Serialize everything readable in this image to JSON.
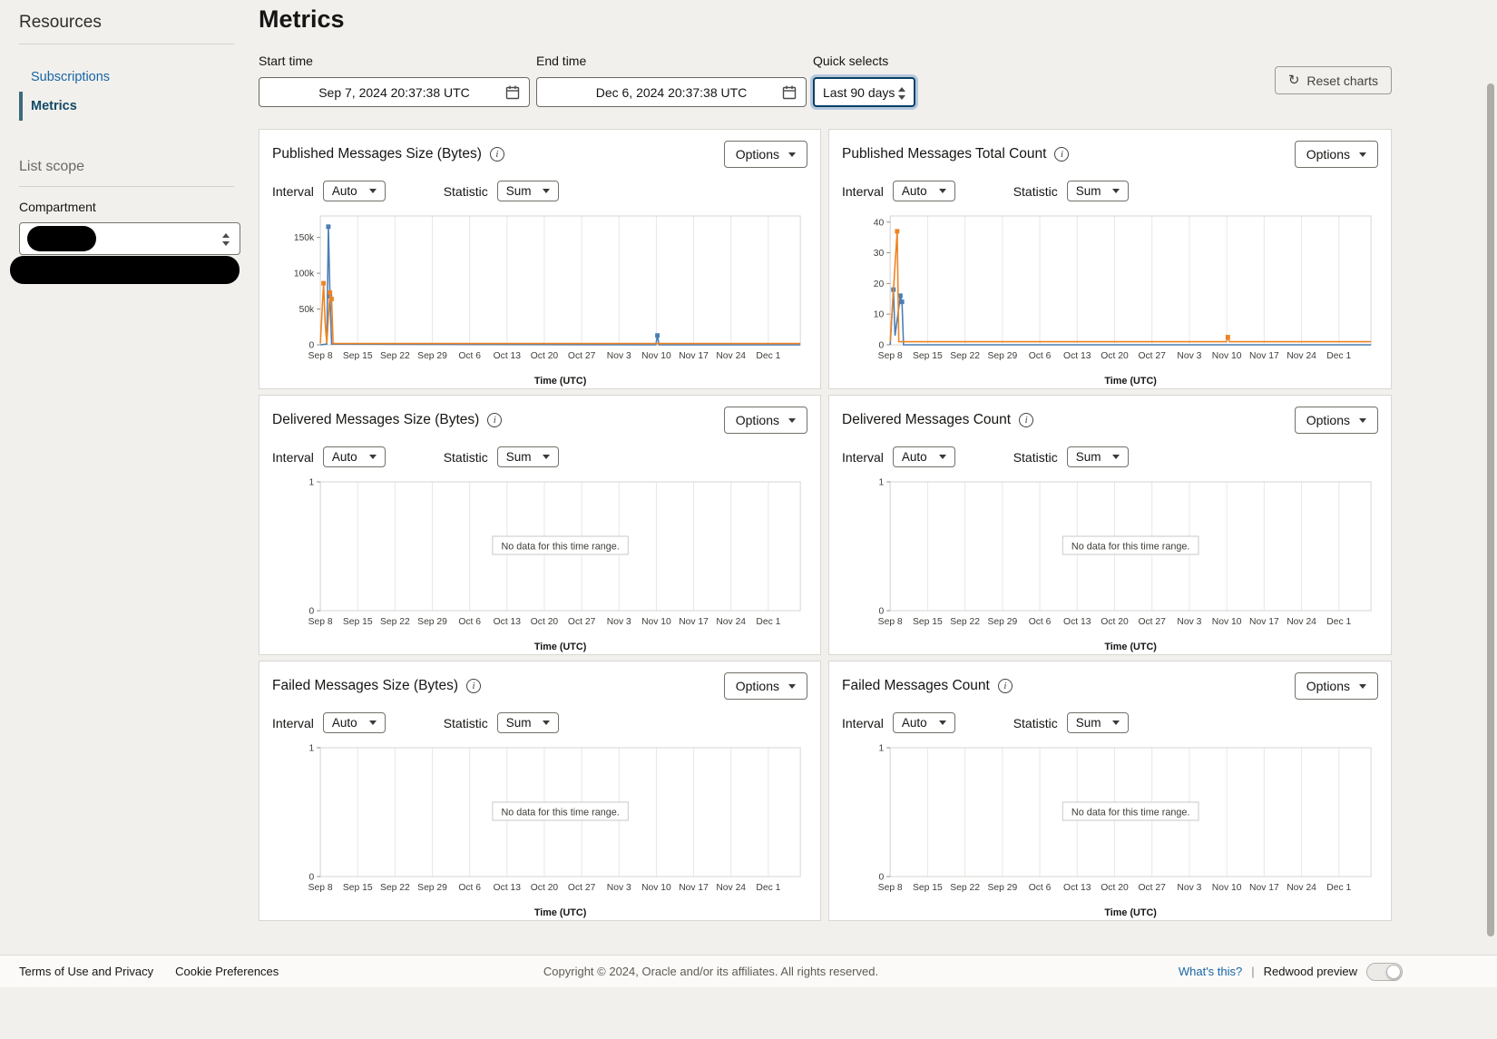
{
  "sidebar": {
    "resources_title": "Resources",
    "items": [
      {
        "label": "Subscriptions"
      },
      {
        "label": "Metrics"
      }
    ],
    "list_scope_title": "List scope",
    "compartment_label": "Compartment"
  },
  "header": {
    "title": "Metrics"
  },
  "controls": {
    "start_time_label": "Start time",
    "start_time_value": "Sep 7, 2024 20:37:38 UTC",
    "end_time_label": "End time",
    "end_time_value": "Dec 6, 2024 20:37:38 UTC",
    "quick_selects_label": "Quick selects",
    "quick_selects_value": "Last 90 days",
    "reset_charts_label": "Reset charts"
  },
  "chart_controls": {
    "interval_label": "Interval",
    "interval_value": "Auto",
    "statistic_label": "Statistic",
    "statistic_value": "Sum",
    "options_label": "Options"
  },
  "icons": {
    "info_glyph": "i",
    "refresh_glyph": "↻"
  },
  "colors": {
    "series_blue": "#4a7eb5",
    "series_orange": "#ee8323",
    "link_teal": "#1766a6"
  },
  "chart_data": [
    {
      "title": "Published Messages Size (Bytes)",
      "type": "line",
      "time_label": "Time (UTC)",
      "xdomain": [
        0,
        90
      ],
      "xticks": [
        0,
        7,
        14,
        21,
        28,
        35,
        42,
        49,
        56,
        63,
        70,
        77,
        84
      ],
      "xlabels": [
        "Sep 8",
        "Sep 15",
        "Sep 22",
        "Sep 29",
        "Oct 6",
        "Oct 13",
        "Oct 20",
        "Oct 27",
        "Nov 3",
        "Nov 10",
        "Nov 17",
        "Nov 24",
        "Dec 1"
      ],
      "ylim": [
        0,
        180000
      ],
      "yticks": [
        {
          "v": 0,
          "label": "0"
        },
        {
          "v": 50000,
          "label": "50k"
        },
        {
          "v": 100000,
          "label": "100k"
        },
        {
          "v": 150000,
          "label": "150k"
        }
      ],
      "no_data": false,
      "series": [
        {
          "name": "published-size-blue",
          "color": "#4a7eb5",
          "points": [
            [
              0,
              0
            ],
            [
              1.2,
              1000
            ],
            [
              1.5,
              165000
            ],
            [
              1.8,
              68000
            ],
            [
              2.1,
              1000
            ],
            [
              62.9,
              0
            ],
            [
              63.2,
              13000
            ],
            [
              63.5,
              0
            ],
            [
              90,
              0
            ]
          ],
          "markers": [
            [
              1.5,
              165000
            ],
            [
              1.8,
              68000
            ],
            [
              63.2,
              13000
            ]
          ]
        },
        {
          "name": "published-size-orange",
          "color": "#ee8323",
          "points": [
            [
              0,
              1800
            ],
            [
              0.6,
              86000
            ],
            [
              0.9,
              30000
            ],
            [
              1.2,
              1800
            ],
            [
              1.8,
              73000
            ],
            [
              2.1,
              64000
            ],
            [
              2.4,
              1800
            ],
            [
              90,
              1800
            ]
          ],
          "markers": [
            [
              0.6,
              86000
            ],
            [
              1.8,
              73000
            ],
            [
              2.1,
              64000
            ]
          ]
        }
      ]
    },
    {
      "title": "Published Messages Total Count",
      "type": "line",
      "time_label": "Time (UTC)",
      "xdomain": [
        0,
        90
      ],
      "xticks": [
        0,
        7,
        14,
        21,
        28,
        35,
        42,
        49,
        56,
        63,
        70,
        77,
        84
      ],
      "xlabels": [
        "Sep 8",
        "Sep 15",
        "Sep 22",
        "Sep 29",
        "Oct 6",
        "Oct 13",
        "Oct 20",
        "Oct 27",
        "Nov 3",
        "Nov 10",
        "Nov 17",
        "Nov 24",
        "Dec 1"
      ],
      "ylim": [
        0,
        42
      ],
      "yticks": [
        {
          "v": 0,
          "label": "0"
        },
        {
          "v": 10,
          "label": "10"
        },
        {
          "v": 20,
          "label": "20"
        },
        {
          "v": 30,
          "label": "30"
        },
        {
          "v": 40,
          "label": "40"
        }
      ],
      "no_data": false,
      "series": [
        {
          "name": "published-count-blue",
          "color": "#4a7eb5",
          "points": [
            [
              0,
              0
            ],
            [
              0.6,
              18
            ],
            [
              0.9,
              3
            ],
            [
              1.9,
              16
            ],
            [
              2.2,
              14
            ],
            [
              2.5,
              0
            ],
            [
              90,
              0
            ]
          ],
          "markers": [
            [
              0.6,
              18
            ],
            [
              1.9,
              16
            ],
            [
              2.2,
              14
            ]
          ]
        },
        {
          "name": "published-count-orange",
          "color": "#ee8323",
          "points": [
            [
              0,
              1
            ],
            [
              1.3,
              37
            ],
            [
              1.6,
              1
            ],
            [
              62.9,
              1
            ],
            [
              63.2,
              2.5
            ],
            [
              63.5,
              1
            ],
            [
              90,
              1
            ]
          ],
          "markers": [
            [
              1.3,
              37
            ],
            [
              63.2,
              2.5
            ]
          ]
        }
      ]
    },
    {
      "title": "Delivered Messages Size (Bytes)",
      "type": "line",
      "time_label": "Time (UTC)",
      "xdomain": [
        0,
        90
      ],
      "xticks": [
        0,
        7,
        14,
        21,
        28,
        35,
        42,
        49,
        56,
        63,
        70,
        77,
        84
      ],
      "xlabels": [
        "Sep 8",
        "Sep 15",
        "Sep 22",
        "Sep 29",
        "Oct 6",
        "Oct 13",
        "Oct 20",
        "Oct 27",
        "Nov 3",
        "Nov 10",
        "Nov 17",
        "Nov 24",
        "Dec 1"
      ],
      "ylim": [
        0,
        1
      ],
      "yticks": [
        {
          "v": 0,
          "label": "0"
        },
        {
          "v": 1,
          "label": "1"
        }
      ],
      "no_data": true,
      "no_data_text": "No data for this time range.",
      "series": []
    },
    {
      "title": "Delivered Messages Count",
      "type": "line",
      "time_label": "Time (UTC)",
      "xdomain": [
        0,
        90
      ],
      "xticks": [
        0,
        7,
        14,
        21,
        28,
        35,
        42,
        49,
        56,
        63,
        70,
        77,
        84
      ],
      "xlabels": [
        "Sep 8",
        "Sep 15",
        "Sep 22",
        "Sep 29",
        "Oct 6",
        "Oct 13",
        "Oct 20",
        "Oct 27",
        "Nov 3",
        "Nov 10",
        "Nov 17",
        "Nov 24",
        "Dec 1"
      ],
      "ylim": [
        0,
        1
      ],
      "yticks": [
        {
          "v": 0,
          "label": "0"
        },
        {
          "v": 1,
          "label": "1"
        }
      ],
      "no_data": true,
      "no_data_text": "No data for this time range.",
      "series": []
    },
    {
      "title": "Failed Messages Size (Bytes)",
      "type": "line",
      "time_label": "Time (UTC)",
      "xdomain": [
        0,
        90
      ],
      "xticks": [
        0,
        7,
        14,
        21,
        28,
        35,
        42,
        49,
        56,
        63,
        70,
        77,
        84
      ],
      "xlabels": [
        "Sep 8",
        "Sep 15",
        "Sep 22",
        "Sep 29",
        "Oct 6",
        "Oct 13",
        "Oct 20",
        "Oct 27",
        "Nov 3",
        "Nov 10",
        "Nov 17",
        "Nov 24",
        "Dec 1"
      ],
      "ylim": [
        0,
        1
      ],
      "yticks": [
        {
          "v": 0,
          "label": "0"
        },
        {
          "v": 1,
          "label": "1"
        }
      ],
      "no_data": true,
      "no_data_text": "No data for this time range.",
      "series": []
    },
    {
      "title": "Failed Messages Count",
      "type": "line",
      "time_label": "Time (UTC)",
      "xdomain": [
        0,
        90
      ],
      "xticks": [
        0,
        7,
        14,
        21,
        28,
        35,
        42,
        49,
        56,
        63,
        70,
        77,
        84
      ],
      "xlabels": [
        "Sep 8",
        "Sep 15",
        "Sep 22",
        "Sep 29",
        "Oct 6",
        "Oct 13",
        "Oct 20",
        "Oct 27",
        "Nov 3",
        "Nov 10",
        "Nov 17",
        "Nov 24",
        "Dec 1"
      ],
      "ylim": [
        0,
        1
      ],
      "yticks": [
        {
          "v": 0,
          "label": "0"
        },
        {
          "v": 1,
          "label": "1"
        }
      ],
      "no_data": true,
      "no_data_text": "No data for this time range.",
      "series": []
    }
  ],
  "footer": {
    "terms": "Terms of Use and Privacy",
    "cookies": "Cookie Preferences",
    "copyright": "Copyright © 2024, Oracle and/or its affiliates. All rights reserved.",
    "whats_this": "What's this?",
    "separator": "|",
    "redwood": "Redwood preview"
  }
}
